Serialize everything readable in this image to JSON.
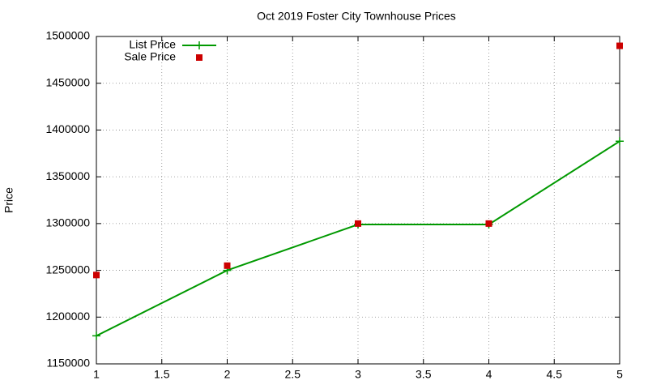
{
  "chart_data": {
    "type": "line",
    "title": "Oct 2019 Foster City Townhouse Prices",
    "y_label": "Price",
    "x": [
      1,
      2,
      3,
      4,
      5
    ],
    "series": [
      {
        "name": "List Price",
        "color": "#009900",
        "style": "linespoints",
        "values": [
          1180000,
          1250000,
          1299000,
          1299000,
          1388000
        ]
      },
      {
        "name": "Sale Price",
        "color": "#cc0000",
        "style": "points",
        "values": [
          1245000,
          1255000,
          1300000,
          1300000,
          1490000
        ]
      }
    ],
    "xlim": [
      1,
      5
    ],
    "xticks": [
      1,
      1.5,
      2,
      2.5,
      3,
      3.5,
      4,
      4.5,
      5
    ],
    "ylim": [
      1150000,
      1500000
    ],
    "yticks": [
      1150000,
      1200000,
      1250000,
      1300000,
      1350000,
      1400000,
      1450000,
      1500000
    ],
    "grid": true,
    "legend": "top-left"
  }
}
